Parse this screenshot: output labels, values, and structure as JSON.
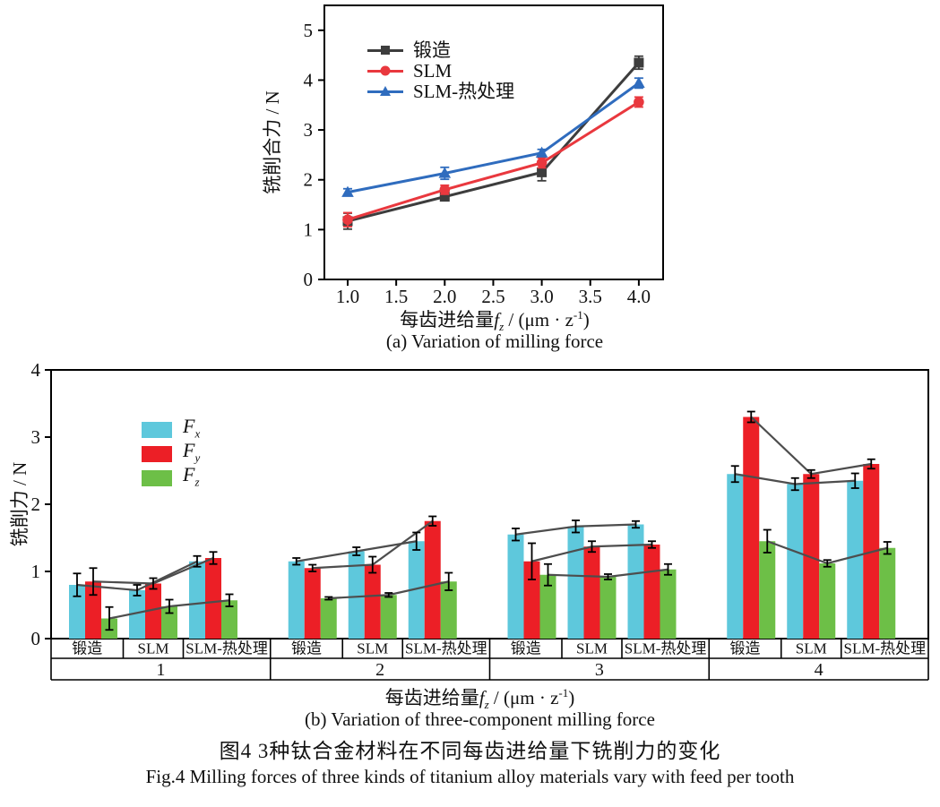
{
  "page": {
    "background": "#ffffff",
    "caption_cn": "图4  3种钛合金材料在不同每齿进给量下铣削力的变化",
    "caption_en": "Fig.4  Milling forces of three kinds of titanium alloy materials vary with feed per tooth"
  },
  "chart_data": [
    {
      "id": "resultant-milling-force",
      "type": "line",
      "sub_caption": "(a) Variation of milling force",
      "ylabel": "铣削合力 / N",
      "xlabel": {
        "prefix": "每齿进给量",
        "var": "f",
        "sub": "z",
        "unit": " / (μm · z",
        "sup": "-1",
        "close": ")"
      },
      "x": [
        1.0,
        2.0,
        3.0,
        4.0
      ],
      "xticks": [
        "1.0",
        "1.5",
        "2.0",
        "2.5",
        "3.0",
        "3.5",
        "4.0"
      ],
      "yticks": [
        0,
        1,
        2,
        3,
        4,
        5
      ],
      "xlim": [
        0.76,
        4.25
      ],
      "ylim": [
        0,
        5.5
      ],
      "grid": false,
      "legend_position": "upper-left-inside",
      "series": [
        {
          "name": "锻造",
          "marker": "square",
          "color": "#3d3d3d",
          "values": [
            1.17,
            1.66,
            2.15,
            4.35
          ],
          "errors": [
            0.16,
            0.05,
            0.17,
            0.13
          ]
        },
        {
          "name": "SLM",
          "marker": "circle",
          "color": "#e9383e",
          "values": [
            1.2,
            1.8,
            2.34,
            3.56
          ],
          "errors": [
            0.14,
            0.09,
            0.1,
            0.1
          ]
        },
        {
          "name": "SLM-热处理",
          "marker": "triangle",
          "color": "#2f6cbe",
          "values": [
            1.75,
            2.13,
            2.54,
            3.94
          ],
          "errors": [
            0.07,
            0.12,
            0.07,
            0.1
          ]
        }
      ]
    },
    {
      "id": "three-component-milling-force",
      "type": "bar",
      "sub_caption": "(b) Variation of three-component milling force",
      "ylabel": "铣削力 / N",
      "xlabel": {
        "prefix": "每齿进给量",
        "var": "f",
        "sub": "z",
        "unit": " / (μm · z",
        "sup": "-1",
        "close": ")"
      },
      "yticks": [
        0,
        1,
        2,
        3,
        4
      ],
      "ylim": [
        0,
        4
      ],
      "grid": false,
      "connector_color": "#4d4d4d",
      "components": [
        {
          "key": "Fx",
          "label": "F",
          "sub": "x",
          "color": "#5ec8dc"
        },
        {
          "key": "Fy",
          "label": "F",
          "sub": "y",
          "color": "#ec1f26"
        },
        {
          "key": "Fz",
          "label": "F",
          "sub": "z",
          "color": "#6dbf47"
        }
      ],
      "groups": [
        {
          "feed": "1",
          "bars": [
            {
              "material": "锻造",
              "values": [
                0.8,
                0.85,
                0.3
              ],
              "errors": [
                0.17,
                0.2,
                0.17
              ]
            },
            {
              "material": "SLM",
              "values": [
                0.72,
                0.82,
                0.48
              ],
              "errors": [
                0.08,
                0.08,
                0.1
              ]
            },
            {
              "material": "SLM-热处理",
              "values": [
                1.15,
                1.2,
                0.57
              ],
              "errors": [
                0.08,
                0.09,
                0.09
              ]
            }
          ]
        },
        {
          "feed": "2",
          "bars": [
            {
              "material": "锻造",
              "values": [
                1.15,
                1.05,
                0.6
              ],
              "errors": [
                0.05,
                0.05,
                0.02
              ]
            },
            {
              "material": "SLM",
              "values": [
                1.3,
                1.1,
                0.65
              ],
              "errors": [
                0.06,
                0.12,
                0.03
              ]
            },
            {
              "material": "SLM-热处理",
              "values": [
                1.45,
                1.75,
                0.85
              ],
              "errors": [
                0.13,
                0.07,
                0.13
              ]
            }
          ]
        },
        {
          "feed": "3",
          "bars": [
            {
              "material": "锻造",
              "values": [
                1.55,
                1.15,
                0.95
              ],
              "errors": [
                0.09,
                0.27,
                0.16
              ]
            },
            {
              "material": "SLM",
              "values": [
                1.67,
                1.37,
                0.92
              ],
              "errors": [
                0.09,
                0.08,
                0.04
              ]
            },
            {
              "material": "SLM-热处理",
              "values": [
                1.7,
                1.4,
                1.03
              ],
              "errors": [
                0.05,
                0.05,
                0.08
              ]
            }
          ]
        },
        {
          "feed": "4",
          "bars": [
            {
              "material": "锻造",
              "values": [
                2.45,
                3.3,
                1.45
              ],
              "errors": [
                0.12,
                0.08,
                0.17
              ]
            },
            {
              "material": "SLM",
              "values": [
                2.3,
                2.45,
                1.12
              ],
              "errors": [
                0.09,
                0.06,
                0.05
              ]
            },
            {
              "material": "SLM-热处理",
              "values": [
                2.35,
                2.6,
                1.35
              ],
              "errors": [
                0.11,
                0.07,
                0.09
              ]
            }
          ]
        }
      ]
    }
  ]
}
